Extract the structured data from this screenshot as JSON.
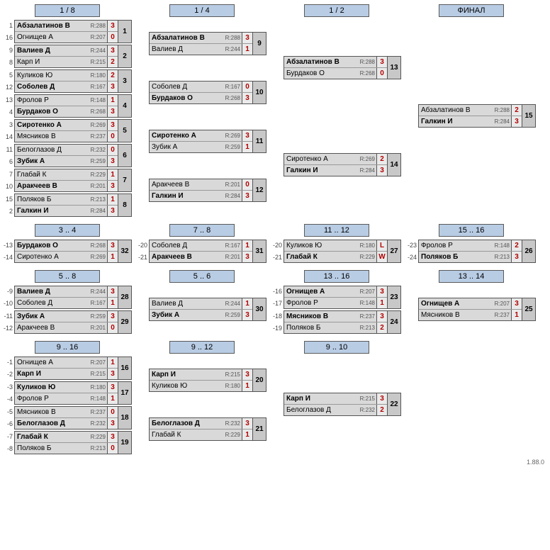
{
  "version": "1.88.0",
  "rounds": {
    "r18": "1 / 8",
    "r14": "1 / 4",
    "r12": "1 / 2",
    "rf": "ФИНАЛ",
    "p34": "3 .. 4",
    "p78": "7 .. 8",
    "p1112": "11 .. 12",
    "p1516": "15 .. 16",
    "p58": "5 .. 8",
    "p56": "5 .. 6",
    "p1316": "13 .. 16",
    "p1314": "13 .. 14",
    "p916": "9 .. 16",
    "p912": "9 .. 12",
    "p910": "9 .. 10"
  },
  "m": {
    "m1": {
      "id": "1",
      "s1": "1",
      "s2": "16",
      "p1": "Абзалатинов В",
      "p2": "Огнищев А",
      "r1": "R:288",
      "r2": "R:207",
      "sc1": "3",
      "sc2": "0",
      "w": 1
    },
    "m2": {
      "id": "2",
      "s1": "9",
      "s2": "8",
      "p1": "Валиев Д",
      "p2": "Карп И",
      "r1": "R:244",
      "r2": "R:215",
      "sc1": "3",
      "sc2": "2",
      "w": 1
    },
    "m3": {
      "id": "3",
      "s1": "5",
      "s2": "12",
      "p1": "Куликов Ю",
      "p2": "Соболев Д",
      "r1": "R:180",
      "r2": "R:167",
      "sc1": "2",
      "sc2": "3",
      "w": 2
    },
    "m4": {
      "id": "4",
      "s1": "13",
      "s2": "4",
      "p1": "Фролов Р",
      "p2": "Бурдаков О",
      "r1": "R:148",
      "r2": "R:268",
      "sc1": "1",
      "sc2": "3",
      "w": 2
    },
    "m5": {
      "id": "5",
      "s1": "3",
      "s2": "14",
      "p1": "Сиротенко А",
      "p2": "Мясников В",
      "r1": "R:269",
      "r2": "R:237",
      "sc1": "3",
      "sc2": "0",
      "w": 1
    },
    "m6": {
      "id": "6",
      "s1": "11",
      "s2": "6",
      "p1": "Белоглазов Д",
      "p2": "Зубик А",
      "r1": "R:232",
      "r2": "R:259",
      "sc1": "0",
      "sc2": "3",
      "w": 2
    },
    "m7": {
      "id": "7",
      "s1": "7",
      "s2": "10",
      "p1": "Глабай К",
      "p2": "Аракчеев В",
      "r1": "R:229",
      "r2": "R:201",
      "sc1": "1",
      "sc2": "3",
      "w": 2
    },
    "m8": {
      "id": "8",
      "s1": "15",
      "s2": "2",
      "p1": "Поляков Б",
      "p2": "Галкин И",
      "r1": "R:213",
      "r2": "R:284",
      "sc1": "1",
      "sc2": "3",
      "w": 2
    },
    "m9": {
      "id": "9",
      "p1": "Абзалатинов В",
      "p2": "Валиев Д",
      "r1": "R:288",
      "r2": "R:244",
      "sc1": "3",
      "sc2": "1",
      "w": 1
    },
    "m10": {
      "id": "10",
      "p1": "Соболев Д",
      "p2": "Бурдаков О",
      "r1": "R:167",
      "r2": "R:268",
      "sc1": "0",
      "sc2": "3",
      "w": 2
    },
    "m11": {
      "id": "11",
      "p1": "Сиротенко А",
      "p2": "Зубик А",
      "r1": "R:269",
      "r2": "R:259",
      "sc1": "3",
      "sc2": "1",
      "w": 1
    },
    "m12": {
      "id": "12",
      "p1": "Аракчеев В",
      "p2": "Галкин И",
      "r1": "R:201",
      "r2": "R:284",
      "sc1": "0",
      "sc2": "3",
      "w": 2
    },
    "m13": {
      "id": "13",
      "p1": "Абзалатинов В",
      "p2": "Бурдаков О",
      "r1": "R:288",
      "r2": "R:268",
      "sc1": "3",
      "sc2": "0",
      "w": 1
    },
    "m14": {
      "id": "14",
      "p1": "Сиротенко А",
      "p2": "Галкин И",
      "r1": "R:269",
      "r2": "R:284",
      "sc1": "2",
      "sc2": "3",
      "w": 2
    },
    "m15": {
      "id": "15",
      "p1": "Абзалатинов В",
      "p2": "Галкин И",
      "r1": "R:288",
      "r2": "R:284",
      "sc1": "2",
      "sc2": "3",
      "w": 2
    },
    "m32": {
      "id": "32",
      "s1": "-13",
      "s2": "-14",
      "p1": "Бурдаков О",
      "p2": "Сиротенко А",
      "r1": "R:268",
      "r2": "R:269",
      "sc1": "3",
      "sc2": "1",
      "w": 1
    },
    "m31": {
      "id": "31",
      "s1": "-20",
      "s2": "-21",
      "p1": "Соболев Д",
      "p2": "Аракчеев В",
      "r1": "R:167",
      "r2": "R:201",
      "sc1": "1",
      "sc2": "3",
      "w": 2
    },
    "m27": {
      "id": "27",
      "s1": "-20",
      "s2": "-21",
      "p1": "Куликов Ю",
      "p2": "Глабай К",
      "r1": "R:180",
      "r2": "R:229",
      "sc1": "L",
      "sc2": "W",
      "w": 2
    },
    "m26": {
      "id": "26",
      "s1": "-23",
      "s2": "-24",
      "p1": "Фролов Р",
      "p2": "Поляков Б",
      "r1": "R:148",
      "r2": "R:213",
      "sc1": "2",
      "sc2": "3",
      "w": 2
    },
    "m28": {
      "id": "28",
      "s1": "-9",
      "s2": "-10",
      "p1": "Валиев Д",
      "p2": "Соболев Д",
      "r1": "R:244",
      "r2": "R:167",
      "sc1": "3",
      "sc2": "1",
      "w": 1
    },
    "m29": {
      "id": "29",
      "s1": "-11",
      "s2": "-12",
      "p1": "Зубик А",
      "p2": "Аракчеев В",
      "r1": "R:259",
      "r2": "R:201",
      "sc1": "3",
      "sc2": "0",
      "w": 1
    },
    "m30": {
      "id": "30",
      "p1": "Валиев Д",
      "p2": "Зубик А",
      "r1": "R:244",
      "r2": "R:259",
      "sc1": "1",
      "sc2": "3",
      "w": 2
    },
    "m23": {
      "id": "23",
      "s1": "-16",
      "s2": "-17",
      "p1": "Огнищев А",
      "p2": "Фролов Р",
      "r1": "R:207",
      "r2": "R:148",
      "sc1": "3",
      "sc2": "1",
      "w": 1
    },
    "m24": {
      "id": "24",
      "s1": "-18",
      "s2": "-19",
      "p1": "Мясников В",
      "p2": "Поляков Б",
      "r1": "R:237",
      "r2": "R:213",
      "sc1": "3",
      "sc2": "2",
      "w": 1
    },
    "m25": {
      "id": "25",
      "p1": "Огнищев А",
      "p2": "Мясников В",
      "r1": "R:207",
      "r2": "R:237",
      "sc1": "3",
      "sc2": "1",
      "w": 1
    },
    "m16": {
      "id": "16",
      "s1": "-1",
      "s2": "-2",
      "p1": "Огнищев А",
      "p2": "Карп И",
      "r1": "R:207",
      "r2": "R:215",
      "sc1": "1",
      "sc2": "3",
      "w": 2
    },
    "m17": {
      "id": "17",
      "s1": "-3",
      "s2": "-4",
      "p1": "Куликов Ю",
      "p2": "Фролов Р",
      "r1": "R:180",
      "r2": "R:148",
      "sc1": "3",
      "sc2": "1",
      "w": 1
    },
    "m18": {
      "id": "18",
      "s1": "-5",
      "s2": "-6",
      "p1": "Мясников В",
      "p2": "Белоглазов Д",
      "r1": "R:237",
      "r2": "R:232",
      "sc1": "0",
      "sc2": "3",
      "w": 2
    },
    "m19": {
      "id": "19",
      "s1": "-7",
      "s2": "-8",
      "p1": "Глабай К",
      "p2": "Поляков Б",
      "r1": "R:229",
      "r2": "R:213",
      "sc1": "3",
      "sc2": "0",
      "w": 1
    },
    "m20": {
      "id": "20",
      "p1": "Карп И",
      "p2": "Куликов Ю",
      "r1": "R:215",
      "r2": "R:180",
      "sc1": "3",
      "sc2": "1",
      "w": 1
    },
    "m21": {
      "id": "21",
      "p1": "Белоглазов Д",
      "p2": "Глабай К",
      "r1": "R:232",
      "r2": "R:229",
      "sc1": "3",
      "sc2": "1",
      "w": 1
    },
    "m22": {
      "id": "22",
      "p1": "Карп И",
      "p2": "Белоглазов Д",
      "r1": "R:215",
      "r2": "R:232",
      "sc1": "3",
      "sc2": "2",
      "w": 1
    }
  }
}
